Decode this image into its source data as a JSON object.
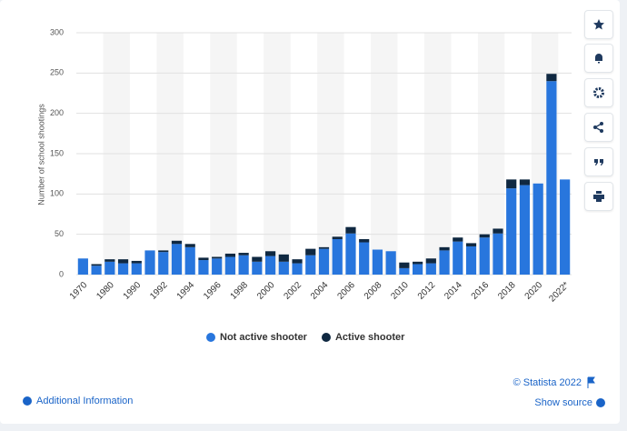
{
  "chart_data": {
    "type": "bar",
    "stacked": true,
    "categories": [
      "1970",
      null,
      "1980",
      null,
      "1990",
      null,
      "1992",
      null,
      "1994",
      null,
      "1996",
      null,
      "1998",
      null,
      "2000",
      null,
      "2002",
      null,
      "2004",
      null,
      "2006",
      null,
      "2008",
      null,
      "2010",
      null,
      "2012",
      null,
      "2014",
      null,
      "2016",
      null,
      "2018",
      null,
      "2020",
      null,
      "2022*"
    ],
    "series": [
      {
        "name": "Not active shooter",
        "color": "#2876dd",
        "values": [
          20,
          11,
          16,
          14,
          14,
          30,
          28,
          38,
          34,
          18,
          20,
          22,
          24,
          16,
          23,
          16,
          14,
          24,
          32,
          44,
          51,
          40,
          31,
          29,
          8,
          13,
          14,
          30,
          41,
          35,
          46,
          51,
          107,
          111,
          113,
          240,
          118
        ]
      },
      {
        "name": "Active shooter",
        "color": "#0f2841",
        "values": [
          0,
          2,
          3,
          5,
          3,
          0,
          2,
          4,
          4,
          3,
          2,
          4,
          3,
          6,
          6,
          9,
          5,
          8,
          2,
          3,
          8,
          4,
          0,
          0,
          7,
          3,
          6,
          4,
          5,
          4,
          4,
          6,
          11,
          7,
          0,
          9,
          0
        ]
      }
    ],
    "y_label": "Number of school shootings",
    "ylim": [
      0,
      300
    ],
    "yticks": [
      0,
      50,
      100,
      150,
      200,
      250,
      300
    ],
    "grid": true,
    "legend": "bottom"
  },
  "footer": {
    "copyright": "© Statista 2022",
    "source": "Show source",
    "info": "Additional Information"
  }
}
